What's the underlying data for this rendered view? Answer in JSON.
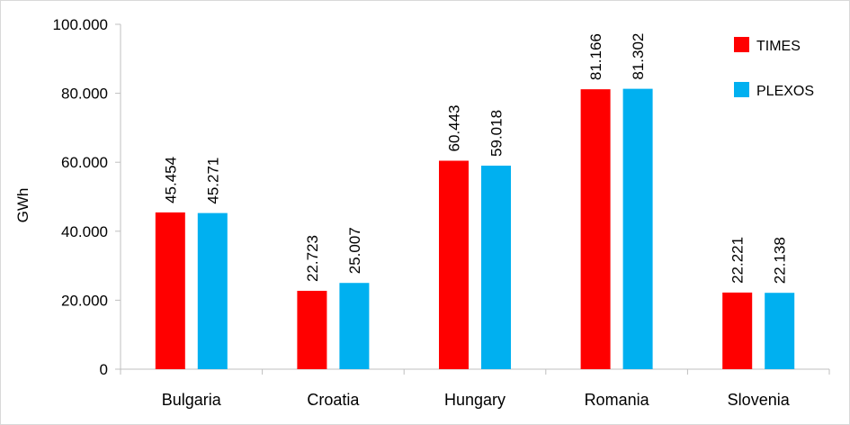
{
  "chart_data": {
    "type": "bar",
    "title": "",
    "xlabel": "",
    "ylabel": "GWh",
    "ylim": [
      0,
      100000
    ],
    "y_ticks": [
      "0",
      "20.000",
      "40.000",
      "60.000",
      "80.000",
      "100.000"
    ],
    "categories": [
      "Bulgaria",
      "Croatia",
      "Hungary",
      "Romania",
      "Slovenia"
    ],
    "series": [
      {
        "name": "TIMES",
        "color": "#ff0000",
        "values": [
          45454,
          22723,
          60443,
          81166,
          22221
        ],
        "labels": [
          "45.454",
          "22.723",
          "60.443",
          "81.166",
          "22.221"
        ]
      },
      {
        "name": "PLEXOS",
        "color": "#00b0f0",
        "values": [
          45271,
          25007,
          59018,
          81302,
          22138
        ],
        "labels": [
          "45.271",
          "25.007",
          "59.018",
          "81.302",
          "22.138"
        ]
      }
    ],
    "grid": false,
    "legend_position": "top-right"
  }
}
